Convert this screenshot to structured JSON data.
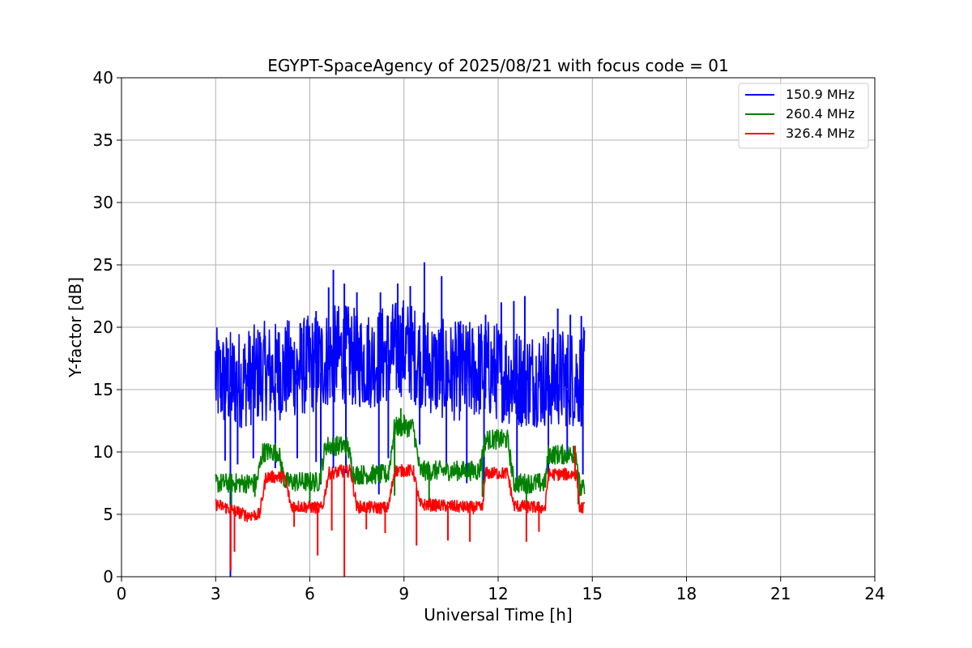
{
  "chart_data": {
    "type": "line",
    "title": "EGYPT-SpaceAgency of 2025/08/21 with focus code = 01",
    "xlabel": "Universal Time [h]",
    "ylabel": "Y-factor [dB]",
    "xlim": [
      0,
      24
    ],
    "ylim": [
      0,
      40
    ],
    "xticks": [
      0,
      3,
      6,
      9,
      12,
      15,
      18,
      21,
      24
    ],
    "yticks": [
      0,
      5,
      10,
      15,
      20,
      25,
      30,
      35,
      40
    ],
    "grid": true,
    "legend_position": "top-right",
    "series": [
      {
        "name": "150.9 MHz",
        "color": "#0000ff",
        "x_range": [
          3.0,
          14.75
        ],
        "baseline": [
          [
            3.0,
            15.0
          ],
          [
            3.5,
            14.8
          ],
          [
            4.0,
            15.0
          ],
          [
            4.5,
            15.5
          ],
          [
            5.0,
            15.5
          ],
          [
            5.5,
            15.8
          ],
          [
            6.0,
            16.0
          ],
          [
            6.5,
            16.5
          ],
          [
            7.0,
            17.0
          ],
          [
            7.5,
            16.5
          ],
          [
            8.0,
            16.5
          ],
          [
            8.5,
            17.0
          ],
          [
            9.0,
            17.5
          ],
          [
            9.5,
            16.5
          ],
          [
            10.0,
            15.8
          ],
          [
            10.5,
            15.5
          ],
          [
            11.0,
            15.5
          ],
          [
            11.5,
            15.8
          ],
          [
            12.0,
            15.5
          ],
          [
            12.5,
            15.0
          ],
          [
            13.0,
            15.0
          ],
          [
            13.5,
            15.0
          ],
          [
            14.0,
            15.0
          ],
          [
            14.5,
            15.0
          ],
          [
            14.75,
            15.0
          ]
        ],
        "noise_range": [
          -3.0,
          5.0
        ],
        "spikes_up": [
          [
            3.0,
            18.1
          ],
          [
            3.4,
            18.3
          ],
          [
            4.4,
            19.6
          ],
          [
            5.0,
            19.6
          ],
          [
            5.8,
            19.5
          ],
          [
            6.2,
            21.3
          ],
          [
            6.6,
            23.2
          ],
          [
            6.75,
            24.6
          ],
          [
            7.1,
            23.5
          ],
          [
            7.5,
            22.8
          ],
          [
            8.25,
            22.8
          ],
          [
            8.8,
            23.5
          ],
          [
            9.2,
            23.3
          ],
          [
            9.65,
            25.2
          ],
          [
            10.2,
            24.1
          ],
          [
            10.8,
            20.5
          ],
          [
            11.6,
            21.0
          ],
          [
            12.1,
            22.0
          ],
          [
            12.5,
            22.1
          ],
          [
            12.85,
            22.5
          ],
          [
            13.9,
            21.5
          ],
          [
            14.3,
            21.0
          ],
          [
            14.65,
            20.9
          ]
        ],
        "spikes_down": [
          [
            3.3,
            9.3
          ],
          [
            3.47,
            0.0
          ],
          [
            3.7,
            9.0
          ],
          [
            4.2,
            9.5
          ],
          [
            4.9,
            8.7
          ],
          [
            5.6,
            9.5
          ],
          [
            6.2,
            9.2
          ],
          [
            6.35,
            7.4
          ],
          [
            6.75,
            8.7
          ],
          [
            7.15,
            8.3
          ],
          [
            8.2,
            6.6
          ],
          [
            8.5,
            9.5
          ],
          [
            9.5,
            10.6
          ],
          [
            10.35,
            8.4
          ],
          [
            11.0,
            7.5
          ],
          [
            11.55,
            7.4
          ],
          [
            12.6,
            7.1
          ],
          [
            13.6,
            7.9
          ],
          [
            14.2,
            9.8
          ],
          [
            14.7,
            8.2
          ]
        ]
      },
      {
        "name": "260.4 MHz",
        "color": "#008000",
        "x_range": [
          3.0,
          14.75
        ],
        "baseline": [
          [
            3.0,
            7.5
          ],
          [
            4.3,
            7.5
          ],
          [
            4.5,
            10.0
          ],
          [
            5.0,
            10.0
          ],
          [
            5.2,
            7.6
          ],
          [
            6.3,
            7.6
          ],
          [
            6.5,
            10.5
          ],
          [
            7.2,
            10.5
          ],
          [
            7.4,
            8.2
          ],
          [
            8.5,
            8.2
          ],
          [
            8.7,
            12.0
          ],
          [
            9.3,
            12.0
          ],
          [
            9.5,
            8.5
          ],
          [
            11.4,
            8.5
          ],
          [
            11.6,
            11.0
          ],
          [
            12.3,
            11.0
          ],
          [
            12.5,
            7.5
          ],
          [
            13.5,
            7.5
          ],
          [
            13.6,
            9.8
          ],
          [
            14.5,
            9.8
          ],
          [
            14.6,
            7.0
          ],
          [
            14.75,
            7.0
          ]
        ],
        "noise_range": [
          -0.8,
          0.8
        ],
        "spikes_up": [
          [
            8.9,
            13.5
          ],
          [
            9.0,
            13.0
          ],
          [
            14.4,
            10.5
          ]
        ],
        "spikes_down": [
          [
            3.5,
            5.3
          ],
          [
            4.25,
            6.4
          ],
          [
            6.0,
            5.8
          ],
          [
            8.7,
            6.5
          ],
          [
            9.8,
            5.8
          ],
          [
            11.5,
            6.4
          ],
          [
            12.9,
            5.5
          ],
          [
            14.55,
            5.8
          ]
        ]
      },
      {
        "name": "326.4 MHz",
        "color": "#ff0000",
        "x_range": [
          3.0,
          14.75
        ],
        "baseline": [
          [
            3.0,
            5.8
          ],
          [
            3.5,
            5.4
          ],
          [
            4.0,
            4.9
          ],
          [
            4.4,
            5.0
          ],
          [
            4.6,
            8.0
          ],
          [
            5.2,
            8.0
          ],
          [
            5.4,
            5.7
          ],
          [
            6.4,
            5.5
          ],
          [
            6.6,
            8.3
          ],
          [
            7.3,
            8.5
          ],
          [
            7.5,
            5.6
          ],
          [
            8.5,
            5.5
          ],
          [
            8.7,
            8.5
          ],
          [
            9.3,
            8.5
          ],
          [
            9.5,
            5.8
          ],
          [
            11.5,
            5.5
          ],
          [
            11.6,
            8.3
          ],
          [
            12.3,
            8.3
          ],
          [
            12.5,
            5.7
          ],
          [
            13.5,
            5.5
          ],
          [
            13.6,
            8.2
          ],
          [
            14.5,
            8.2
          ],
          [
            14.6,
            5.5
          ],
          [
            14.75,
            5.5
          ]
        ],
        "noise_range": [
          -0.5,
          0.5
        ],
        "spikes_up": [
          [
            7.0,
            9.0
          ],
          [
            14.45,
            10.5
          ]
        ],
        "spikes_down": [
          [
            3.48,
            0.5
          ],
          [
            3.6,
            2.0
          ],
          [
            5.5,
            4.0
          ],
          [
            6.25,
            1.7
          ],
          [
            6.7,
            3.7
          ],
          [
            7.1,
            0.0
          ],
          [
            7.8,
            3.8
          ],
          [
            8.4,
            3.5
          ],
          [
            9.4,
            2.5
          ],
          [
            10.4,
            2.9
          ],
          [
            11.1,
            2.8
          ],
          [
            12.9,
            2.8
          ],
          [
            13.3,
            3.6
          ]
        ]
      }
    ]
  }
}
